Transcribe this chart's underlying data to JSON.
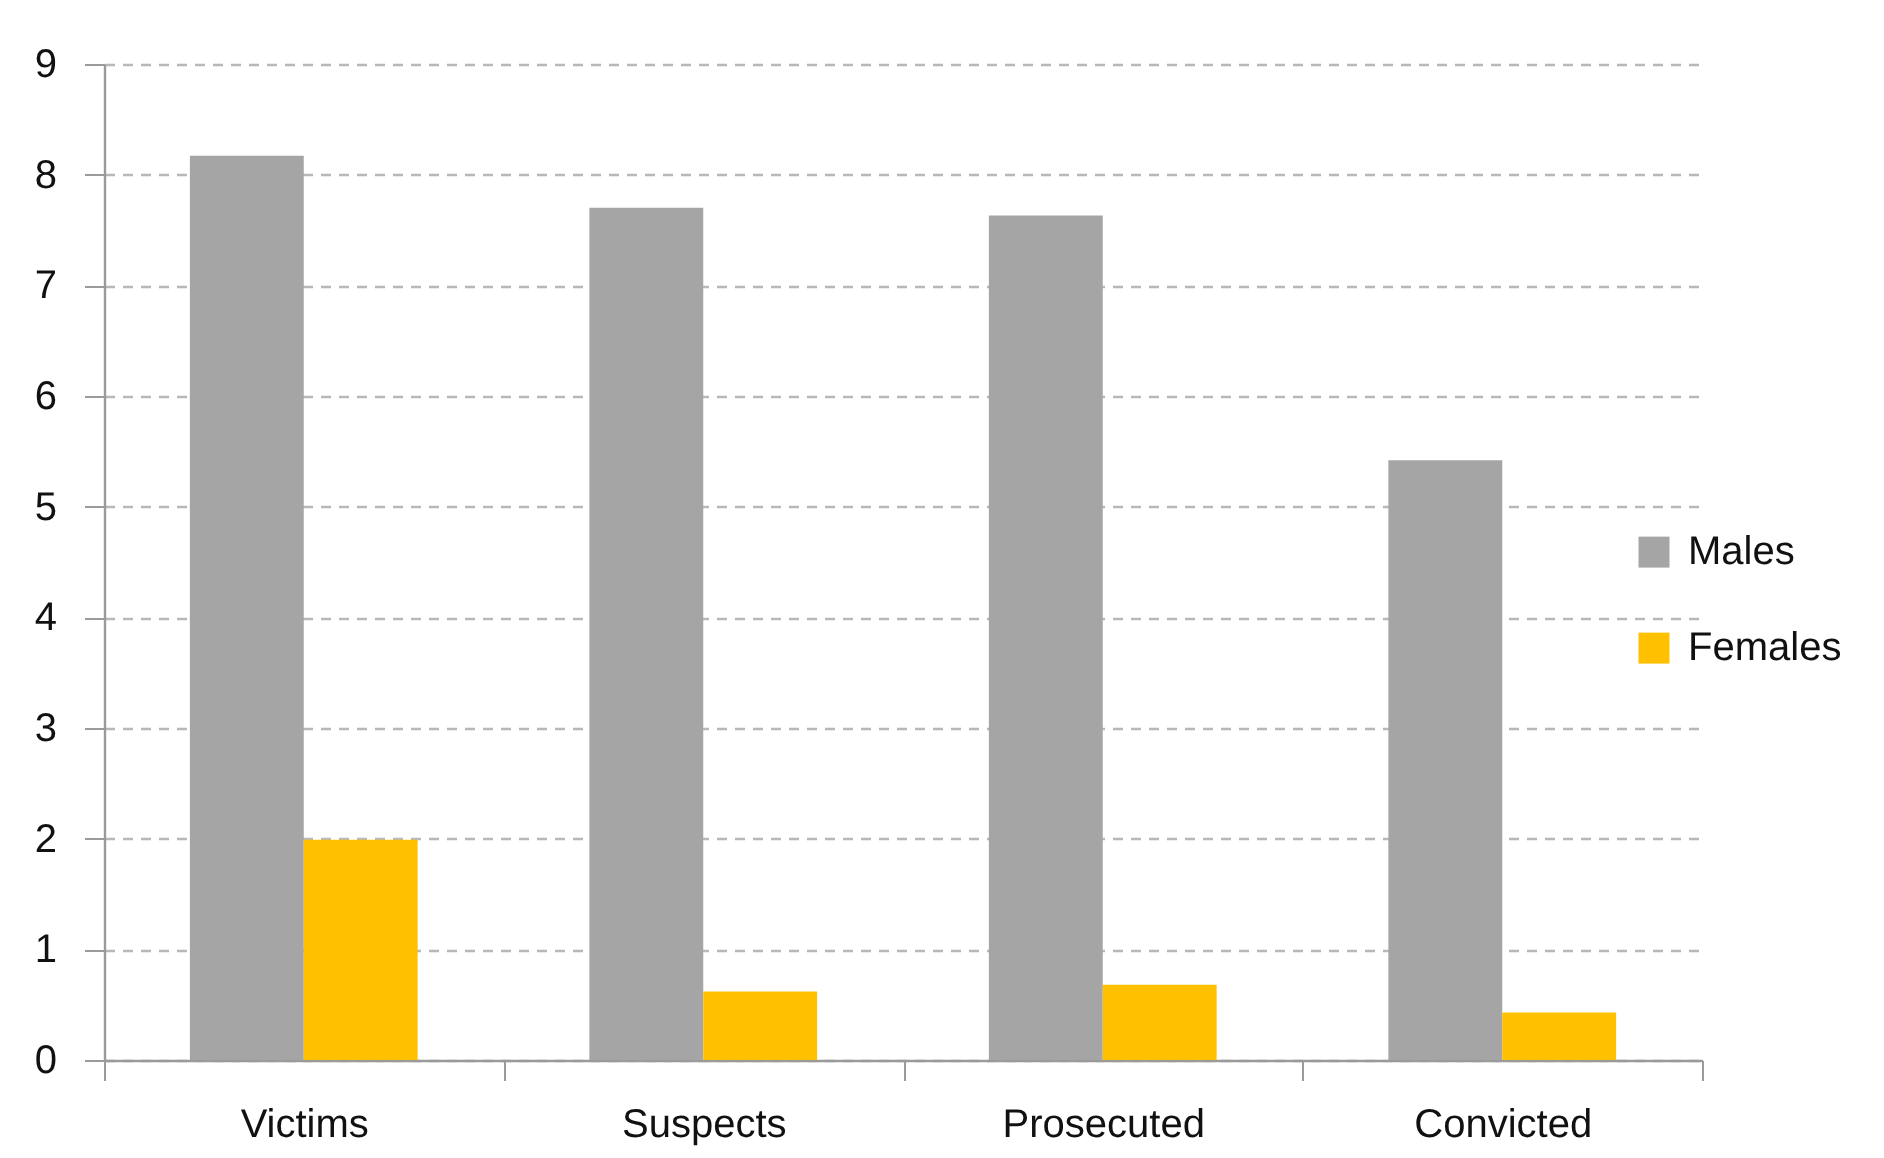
{
  "chart_data": {
    "type": "bar",
    "categories": [
      "Victims",
      "Suspects",
      "Prosecuted",
      "Convicted"
    ],
    "series": [
      {
        "name": "Males",
        "color": "#a5a5a5",
        "values": [
          8.17,
          7.7,
          7.63,
          5.42
        ]
      },
      {
        "name": "Females",
        "color": "#ffc000",
        "values": [
          1.99,
          0.62,
          0.68,
          0.43
        ]
      }
    ],
    "ylim": [
      0,
      9
    ],
    "yticks": [
      0,
      1,
      2,
      3,
      4,
      5,
      6,
      7,
      8,
      9
    ],
    "grid": "y",
    "legend": "right"
  }
}
